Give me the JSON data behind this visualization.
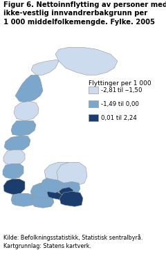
{
  "title_line1": "Figur 6. Nettoinnflytting av personer med",
  "title_line2": "ikke-vestlig innvandrerbakgrunn per",
  "title_line3": "1 000 middelfolkemengde. Fylke. 2005",
  "title_fontsize": 7.2,
  "legend_title": "Flyttinger per 1 000",
  "legend_items": [
    {
      "label": "-2,81 til ‒1,50",
      "color": "#ccdcee"
    },
    {
      "label": "-1,49 til 0,00",
      "color": "#7ba7cc"
    },
    {
      "label": "0,01 til 2,24",
      "color": "#1b3d6e"
    }
  ],
  "source_text": "Kilde: Befolkningsstatistikk, Statistisk sentralbyrå.\nKartgrunnlag: Statens kartverk.",
  "source_fontsize": 5.8,
  "bg_color": "#ffffff",
  "border_color": "#999999",
  "legend_label_size": 6.2,
  "legend_title_size": 6.5
}
